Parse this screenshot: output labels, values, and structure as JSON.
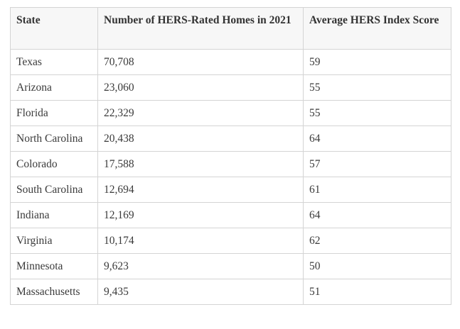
{
  "table": {
    "header": [
      "State",
      "Number of HERS-Rated Homes in 2021",
      "Average HERS Index Score"
    ],
    "rows": [
      [
        "Texas",
        "70,708",
        "59"
      ],
      [
        "Arizona",
        "23,060",
        "55"
      ],
      [
        "Florida",
        "22,329",
        "55"
      ],
      [
        "North Carolina",
        "20,438",
        "64"
      ],
      [
        "Colorado",
        "17,588",
        "57"
      ],
      [
        "South Carolina",
        "12,694",
        "61"
      ],
      [
        "Indiana",
        "12,169",
        "64"
      ],
      [
        "Virginia",
        "10,174",
        "62"
      ],
      [
        "Minnesota",
        "9,623",
        "50"
      ],
      [
        "Massachusetts",
        "9,435",
        "51"
      ]
    ]
  }
}
